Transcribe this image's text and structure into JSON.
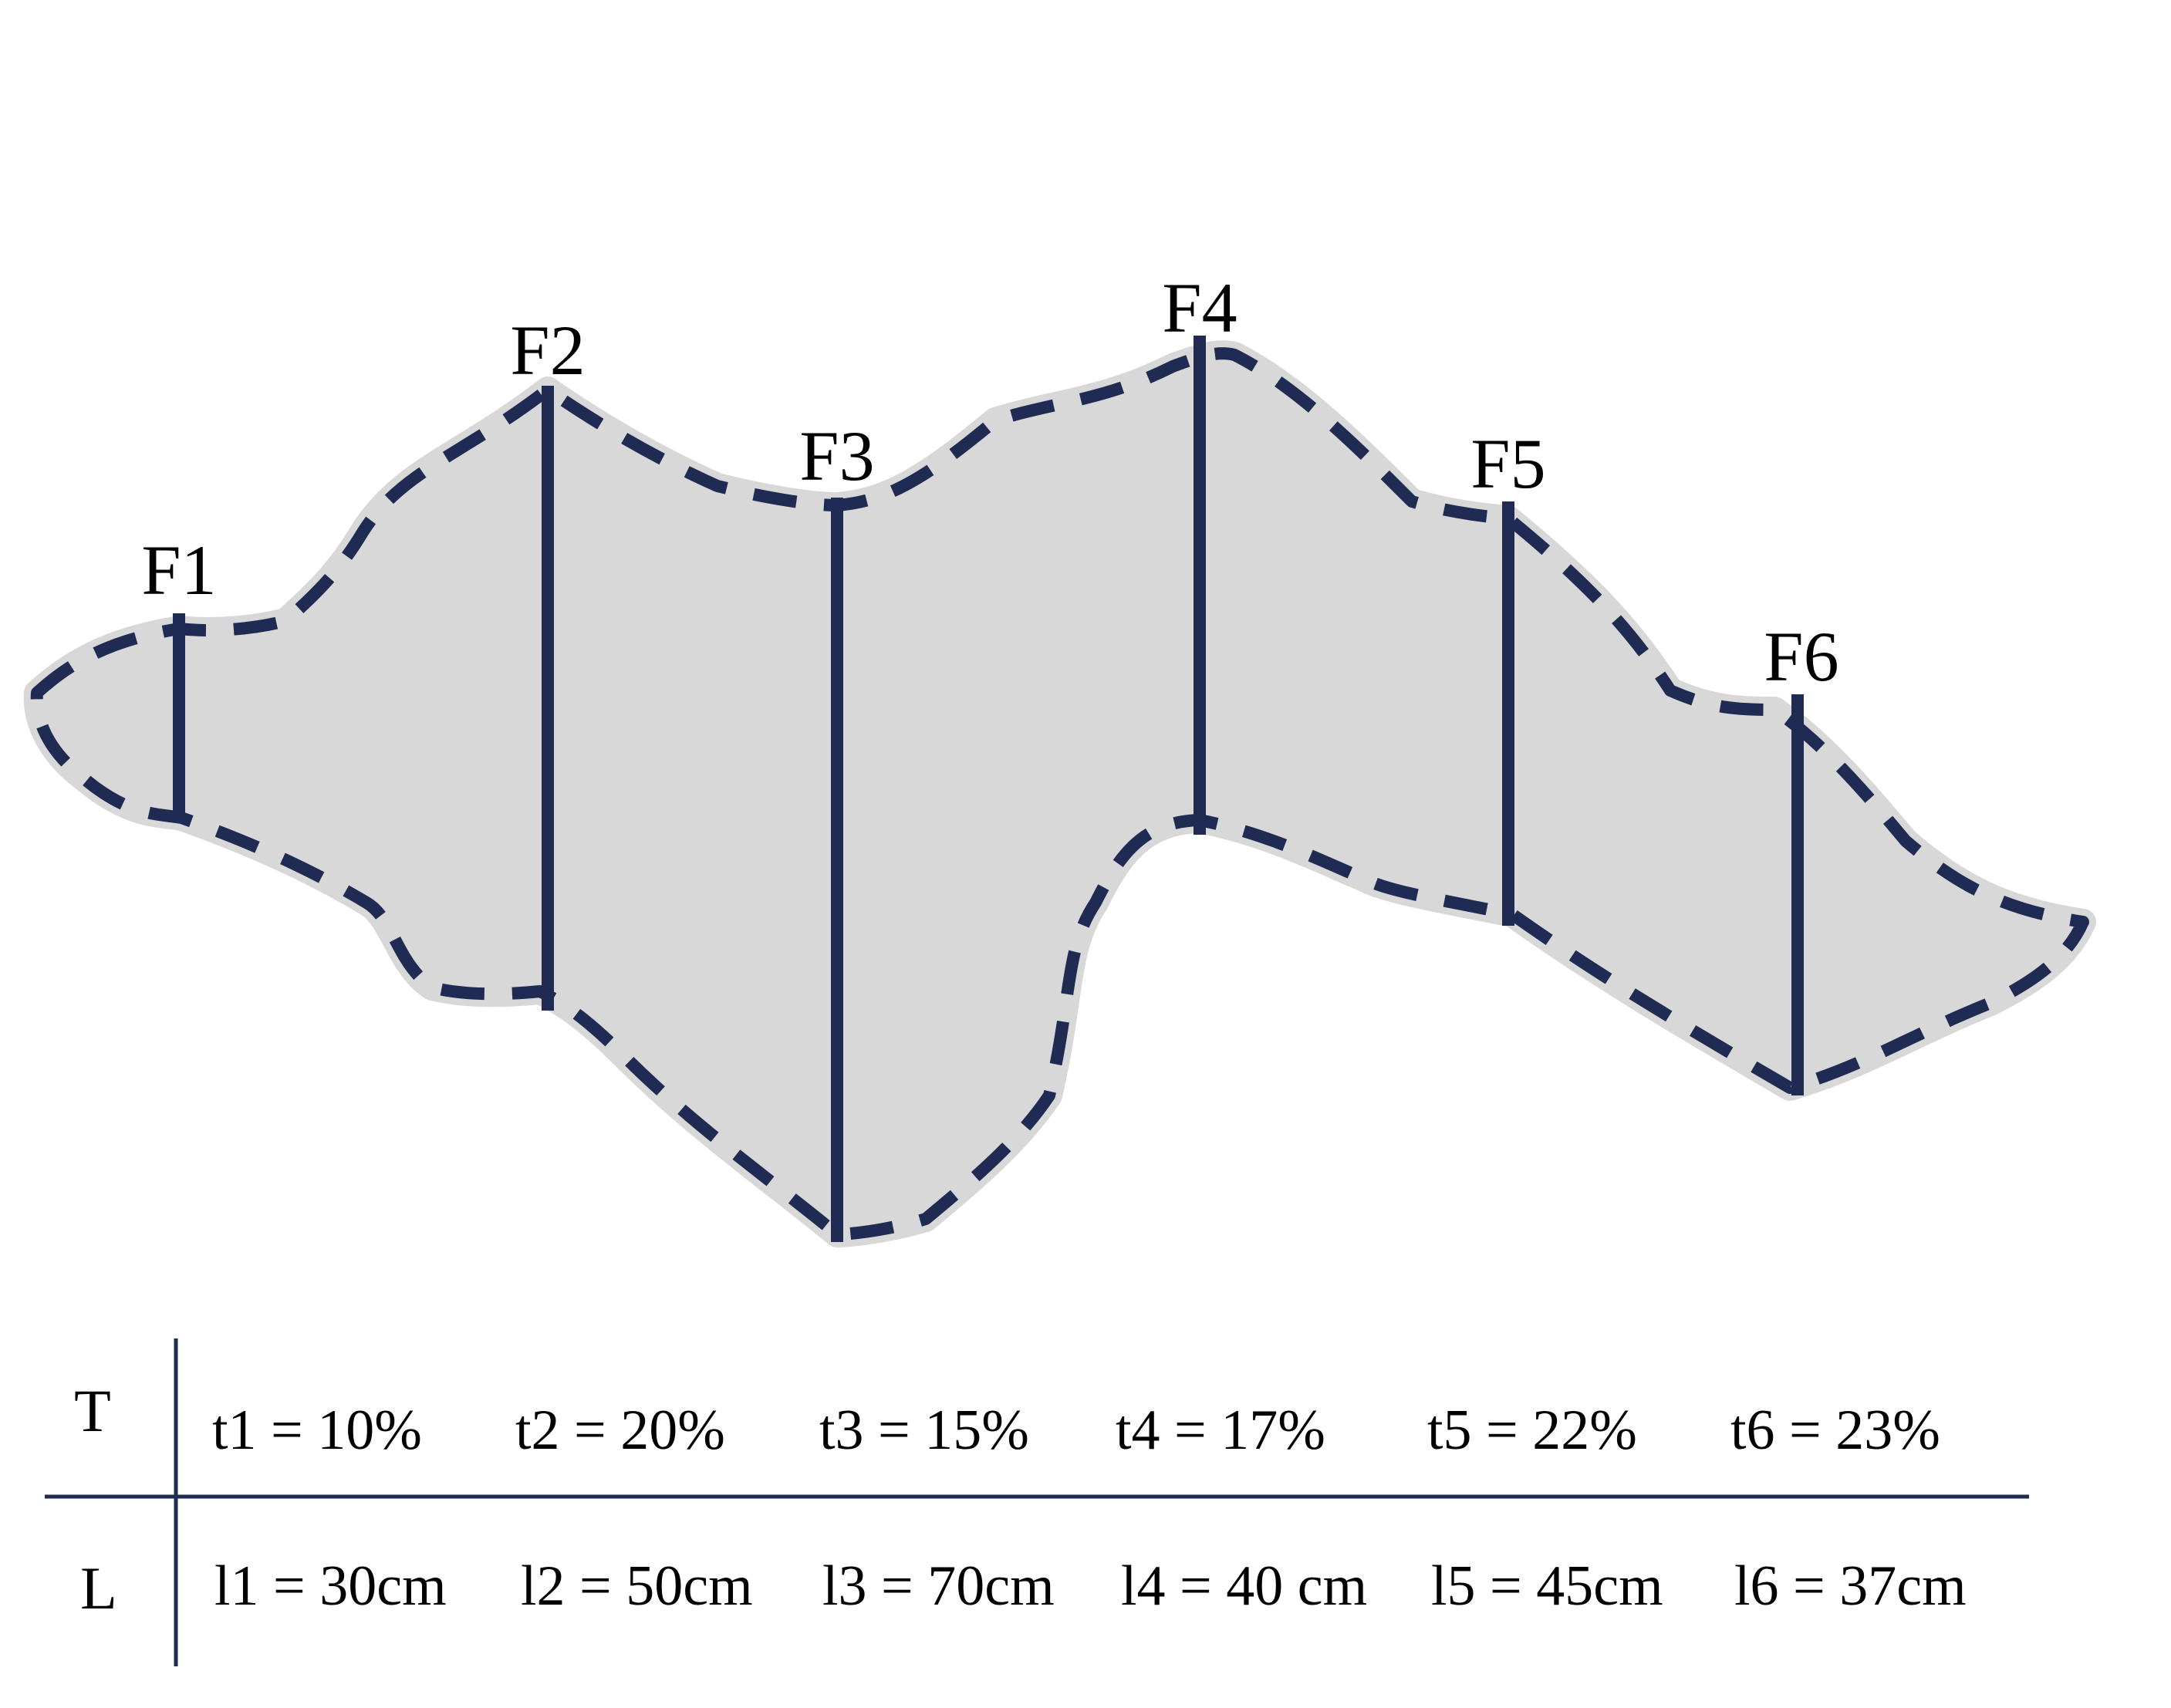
{
  "colors": {
    "outline": "#1f2b52",
    "fill": "#d8d8d8",
    "table_line": "#1f2b52",
    "text": "#000000"
  },
  "fractures": [
    {
      "id": "F1",
      "label": "F1"
    },
    {
      "id": "F2",
      "label": "F2"
    },
    {
      "id": "F3",
      "label": "F3"
    },
    {
      "id": "F4",
      "label": "F4"
    },
    {
      "id": "F5",
      "label": "F5"
    },
    {
      "id": "F6",
      "label": "F6"
    }
  ],
  "table": {
    "rows": [
      {
        "header": "T",
        "cells": [
          "t1 = 10%",
          "t2 = 20%",
          "t3 = 15%",
          "t4 = 17%",
          "t5 = 22%",
          "t6 = 23%"
        ]
      },
      {
        "header": "L",
        "cells": [
          "l1 = 30cm",
          "l2 = 50cm",
          "l3 = 70cm",
          "l4 = 40 cm",
          "l5 = 45cm",
          "l6 = 37cm"
        ]
      }
    ]
  }
}
